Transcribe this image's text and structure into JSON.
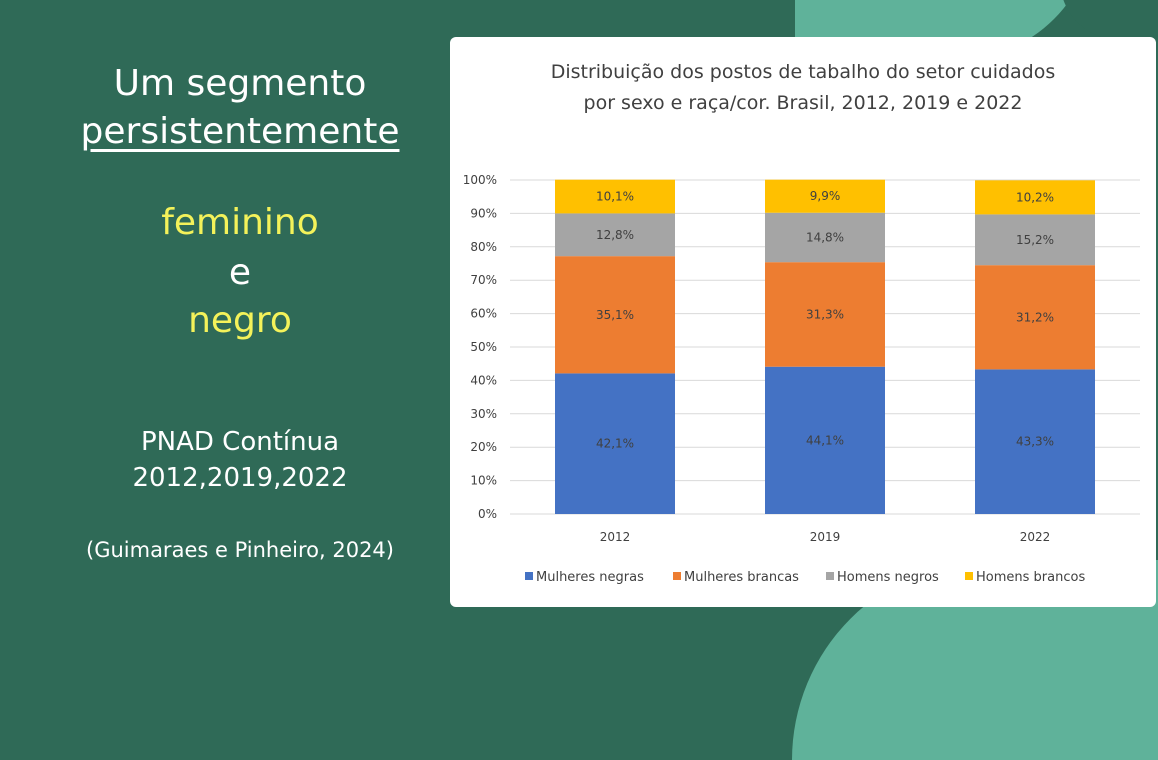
{
  "slide": {
    "heading_line1": "Um segmento",
    "heading_line2": "persistentemente",
    "highlight1": "feminino",
    "connector": "e",
    "highlight2": "negro",
    "source_line1": "PNAD Contínua",
    "source_line2": "2012,2019,2022",
    "citation": "(Guimaraes e Pinheiro, 2024)"
  },
  "colors": {
    "background": "#2f6a57",
    "accent_shape": "#5fb29a",
    "highlight_text": "#f4f25a"
  },
  "chart_data": {
    "type": "bar",
    "stacked": true,
    "title_line1": "Distribuição dos postos de tabalho do setor cuidados",
    "title_line2": "por sexo e raça/cor. Brasil, 2012, 2019 e 2022",
    "categories": [
      "2012",
      "2019",
      "2022"
    ],
    "ylim": [
      0,
      100
    ],
    "yticks": [
      "0%",
      "10%",
      "20%",
      "30%",
      "40%",
      "50%",
      "60%",
      "70%",
      "80%",
      "90%",
      "100%"
    ],
    "grid": true,
    "legend_position": "bottom",
    "series": [
      {
        "name": "Mulheres negras",
        "color": "#4472c4",
        "values": [
          42.1,
          44.1,
          43.3
        ],
        "labels": [
          "42,1%",
          "44,1%",
          "43,3%"
        ]
      },
      {
        "name": "Mulheres brancas",
        "color": "#ed7d31",
        "values": [
          35.1,
          31.3,
          31.2
        ],
        "labels": [
          "35,1%",
          "31,3%",
          "31,2%"
        ]
      },
      {
        "name": "Homens negros",
        "color": "#a5a5a5",
        "values": [
          12.8,
          14.8,
          15.2
        ],
        "labels": [
          "12,8%",
          "14,8%",
          "15,2%"
        ]
      },
      {
        "name": "Homens brancos",
        "color": "#ffc000",
        "values": [
          10.1,
          9.9,
          10.2
        ],
        "labels": [
          "10,1%",
          "9,9%",
          "10,2%"
        ]
      }
    ]
  }
}
